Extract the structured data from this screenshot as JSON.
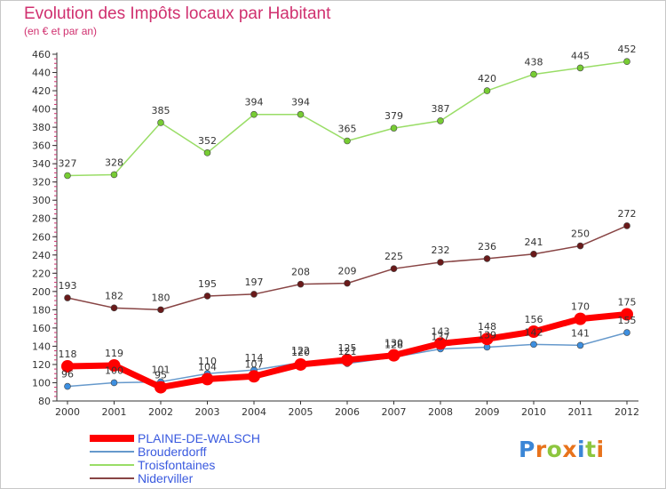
{
  "chart_data": {
    "type": "line",
    "title": "Evolution des Impôts locaux par Habitant",
    "subtitle": "(en € et par an)",
    "ylim": [
      80,
      460
    ],
    "y_ticks": [
      80,
      100,
      120,
      140,
      160,
      180,
      200,
      220,
      240,
      260,
      280,
      300,
      320,
      340,
      360,
      380,
      400,
      420,
      440,
      460
    ],
    "x": [
      "2000",
      "2001",
      "2002",
      "2003",
      "2004",
      "2005",
      "2006",
      "2007",
      "2008",
      "2009",
      "2010",
      "2011",
      "2012"
    ],
    "grid": false,
    "legend_placement": "bottom-left",
    "series": [
      {
        "name": "PLAINE-DE-WALSCH",
        "color": "#ff0000",
        "marker_color": "#ff0000",
        "emphasis": true,
        "values": [
          118,
          119,
          95,
          104,
          107,
          120,
          125,
          130,
          143,
          148,
          156,
          170,
          175
        ]
      },
      {
        "name": "Brouderdorff",
        "color": "#6699cc",
        "marker_color": "#3d8fe0",
        "values": [
          96,
          100,
          101,
          110,
          114,
          122,
          121,
          128,
          137,
          139,
          142,
          141,
          155
        ]
      },
      {
        "name": "Troisfontaines",
        "color": "#99dd66",
        "marker_color": "#77cc33",
        "values": [
          327,
          328,
          385,
          352,
          394,
          394,
          365,
          379,
          387,
          420,
          438,
          445,
          452
        ]
      },
      {
        "name": "Niderviller",
        "color": "#884444",
        "marker_color": "#6a1a1a",
        "values": [
          193,
          182,
          180,
          195,
          197,
          208,
          209,
          225,
          232,
          236,
          241,
          250,
          272
        ]
      }
    ]
  },
  "logo": {
    "letters": [
      "P",
      "r",
      "o",
      "x",
      "i",
      "t",
      "i"
    ],
    "colors": [
      "#3b86d6",
      "#e8731c",
      "#8dc63f",
      "#e8731c",
      "#3b86d6",
      "#8dc63f",
      "#e8731c"
    ]
  }
}
